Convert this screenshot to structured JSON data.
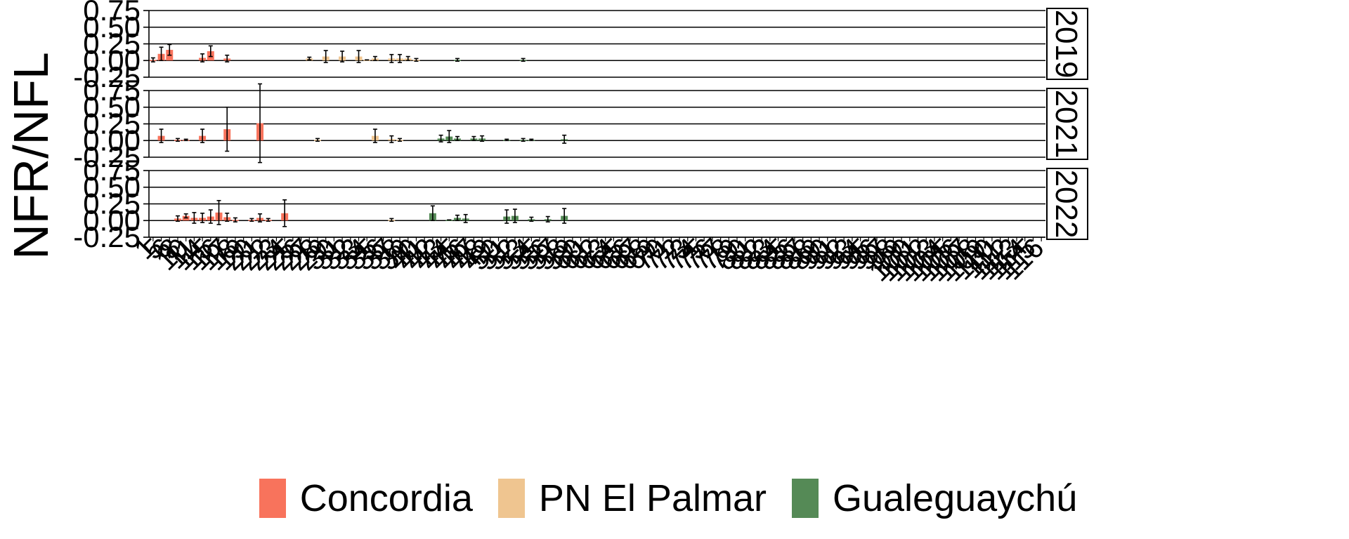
{
  "chart_data": {
    "type": "bar",
    "ylabel": "NFR/NFL",
    "y_ticks": [
      "-0.25",
      "0.00",
      "0.25",
      "0.50",
      "0.75"
    ],
    "ylim": [
      -0.25,
      0.75
    ],
    "categories": [
      "1",
      "5",
      "6",
      "8",
      "10",
      "11",
      "14",
      "15",
      "16",
      "17",
      "18",
      "19",
      "20",
      "21",
      "22",
      "23",
      "24",
      "25",
      "26",
      "27",
      "28",
      "29",
      "30",
      "31",
      "32",
      "33",
      "34",
      "35",
      "36",
      "37",
      "38",
      "39",
      "40",
      "41",
      "42",
      "43",
      "44",
      "45",
      "46",
      "47",
      "48",
      "49",
      "50",
      "51",
      "52",
      "53",
      "54",
      "55",
      "56",
      "57",
      "58",
      "59",
      "60",
      "61",
      "62",
      "63",
      "64",
      "65",
      "66",
      "67",
      "68",
      "69",
      "70",
      "71",
      "72",
      "73",
      "74",
      "75",
      "76",
      "77",
      "78",
      "79",
      "80",
      "81",
      "82",
      "83",
      "84",
      "85",
      "86",
      "87",
      "88",
      "89",
      "90",
      "91",
      "92",
      "93",
      "94",
      "95",
      "96",
      "97",
      "98",
      "99",
      "100",
      "101",
      "102",
      "103",
      "104",
      "105",
      "106",
      "107",
      "108",
      "109",
      "110",
      "111",
      "112",
      "113",
      "114",
      "115",
      "116"
    ],
    "series_colors": {
      "Concordia": "#f8735c",
      "PN El Palmar": "#efc590",
      "Gualeguaychú": "#558a56"
    },
    "legend": {
      "position": "bottom",
      "items": [
        {
          "label": "Concordia",
          "color": "#f8735c"
        },
        {
          "label": "PN El Palmar",
          "color": "#efc590"
        },
        {
          "label": "Gualeguaychú",
          "color": "#558a56"
        }
      ]
    },
    "panels": [
      {
        "label": "2019",
        "bars": [
          {
            "i": 0,
            "site": "Concordia",
            "value": 0.01,
            "err": 0.03
          },
          {
            "i": 1,
            "site": "Concordia",
            "value": 0.1,
            "err": 0.1
          },
          {
            "i": 2,
            "site": "Concordia",
            "value": 0.16,
            "err": 0.08
          },
          {
            "i": 6,
            "site": "Concordia",
            "value": 0.04,
            "err": 0.06
          },
          {
            "i": 7,
            "site": "Concordia",
            "value": 0.14,
            "err": 0.08
          },
          {
            "i": 9,
            "site": "Concordia",
            "value": 0.03,
            "err": 0.05
          },
          {
            "i": 19,
            "site": "PN El Palmar",
            "value": 0.03,
            "err": 0.02
          },
          {
            "i": 21,
            "site": "PN El Palmar",
            "value": 0.06,
            "err": 0.09
          },
          {
            "i": 23,
            "site": "PN El Palmar",
            "value": 0.06,
            "err": 0.08
          },
          {
            "i": 25,
            "site": "PN El Palmar",
            "value": 0.06,
            "err": 0.09
          },
          {
            "i": 26,
            "site": "PN El Palmar",
            "value": 0.01,
            "err": 0.0
          },
          {
            "i": 27,
            "site": "PN El Palmar",
            "value": 0.03,
            "err": 0.03
          },
          {
            "i": 29,
            "site": "PN El Palmar",
            "value": 0.03,
            "err": 0.06
          },
          {
            "i": 30,
            "site": "PN El Palmar",
            "value": 0.03,
            "err": 0.06
          },
          {
            "i": 31,
            "site": "PN El Palmar",
            "value": 0.03,
            "err": 0.03
          },
          {
            "i": 32,
            "site": "PN El Palmar",
            "value": 0.01,
            "err": 0.02
          },
          {
            "i": 37,
            "site": "Gualeguaychú",
            "value": 0.01,
            "err": 0.02
          },
          {
            "i": 45,
            "site": "Gualeguaychú",
            "value": 0.01,
            "err": 0.02
          }
        ]
      },
      {
        "label": "2021",
        "bars": [
          {
            "i": 1,
            "site": "Concordia",
            "value": 0.07,
            "err": 0.1
          },
          {
            "i": 3,
            "site": "Concordia",
            "value": 0.01,
            "err": 0.02
          },
          {
            "i": 4,
            "site": "Concordia",
            "value": 0.01,
            "err": 0.01
          },
          {
            "i": 6,
            "site": "Concordia",
            "value": 0.07,
            "err": 0.1
          },
          {
            "i": 9,
            "site": "Concordia",
            "value": 0.17,
            "err": 0.33
          },
          {
            "i": 13,
            "site": "Concordia",
            "value": 0.26,
            "err": 0.59
          },
          {
            "i": 20,
            "site": "PN El Palmar",
            "value": 0.01,
            "err": 0.02
          },
          {
            "i": 27,
            "site": "PN El Palmar",
            "value": 0.07,
            "err": 0.1
          },
          {
            "i": 29,
            "site": "PN El Palmar",
            "value": 0.02,
            "err": 0.05
          },
          {
            "i": 30,
            "site": "PN El Palmar",
            "value": 0.01,
            "err": 0.02
          },
          {
            "i": 35,
            "site": "Gualeguaychú",
            "value": 0.03,
            "err": 0.05
          },
          {
            "i": 36,
            "site": "Gualeguaychú",
            "value": 0.06,
            "err": 0.09
          },
          {
            "i": 37,
            "site": "Gualeguaychú",
            "value": 0.03,
            "err": 0.03
          },
          {
            "i": 39,
            "site": "Gualeguaychú",
            "value": 0.03,
            "err": 0.03
          },
          {
            "i": 40,
            "site": "Gualeguaychú",
            "value": 0.03,
            "err": 0.04
          },
          {
            "i": 43,
            "site": "Gualeguaychú",
            "value": 0.01,
            "err": 0.01
          },
          {
            "i": 45,
            "site": "Gualeguaychú",
            "value": 0.01,
            "err": 0.02
          },
          {
            "i": 46,
            "site": "Gualeguaychú",
            "value": 0.01,
            "err": 0.01
          },
          {
            "i": 50,
            "site": "Gualeguaychú",
            "value": 0.02,
            "err": 0.06
          }
        ]
      },
      {
        "label": "2022",
        "bars": [
          {
            "i": 3,
            "site": "Concordia",
            "value": 0.03,
            "err": 0.04
          },
          {
            "i": 4,
            "site": "Concordia",
            "value": 0.07,
            "err": 0.03
          },
          {
            "i": 5,
            "site": "Concordia",
            "value": 0.04,
            "err": 0.08
          },
          {
            "i": 6,
            "site": "Concordia",
            "value": 0.04,
            "err": 0.07
          },
          {
            "i": 7,
            "site": "Concordia",
            "value": 0.06,
            "err": 0.1
          },
          {
            "i": 8,
            "site": "Concordia",
            "value": 0.12,
            "err": 0.18
          },
          {
            "i": 9,
            "site": "Concordia",
            "value": 0.05,
            "err": 0.06
          },
          {
            "i": 10,
            "site": "Concordia",
            "value": 0.01,
            "err": 0.03
          },
          {
            "i": 12,
            "site": "Concordia",
            "value": 0.01,
            "err": 0.02
          },
          {
            "i": 13,
            "site": "Concordia",
            "value": 0.04,
            "err": 0.06
          },
          {
            "i": 14,
            "site": "Concordia",
            "value": 0.01,
            "err": 0.02
          },
          {
            "i": 16,
            "site": "Concordia",
            "value": 0.11,
            "err": 0.2
          },
          {
            "i": 29,
            "site": "PN El Palmar",
            "value": 0.01,
            "err": 0.02
          },
          {
            "i": 34,
            "site": "Gualeguaychú",
            "value": 0.11,
            "err": 0.11
          },
          {
            "i": 36,
            "site": "Gualeguaychú",
            "value": 0.01,
            "err": 0.0
          },
          {
            "i": 37,
            "site": "Gualeguaychú",
            "value": 0.04,
            "err": 0.04
          },
          {
            "i": 38,
            "site": "Gualeguaychú",
            "value": 0.03,
            "err": 0.06
          },
          {
            "i": 43,
            "site": "Gualeguaychú",
            "value": 0.06,
            "err": 0.1
          },
          {
            "i": 44,
            "site": "Gualeguaychú",
            "value": 0.07,
            "err": 0.1
          },
          {
            "i": 46,
            "site": "Gualeguaychú",
            "value": 0.02,
            "err": 0.03
          },
          {
            "i": 48,
            "site": "Gualeguaychú",
            "value": 0.02,
            "err": 0.04
          },
          {
            "i": 50,
            "site": "Gualeguaychú",
            "value": 0.07,
            "err": 0.11
          }
        ]
      }
    ]
  }
}
